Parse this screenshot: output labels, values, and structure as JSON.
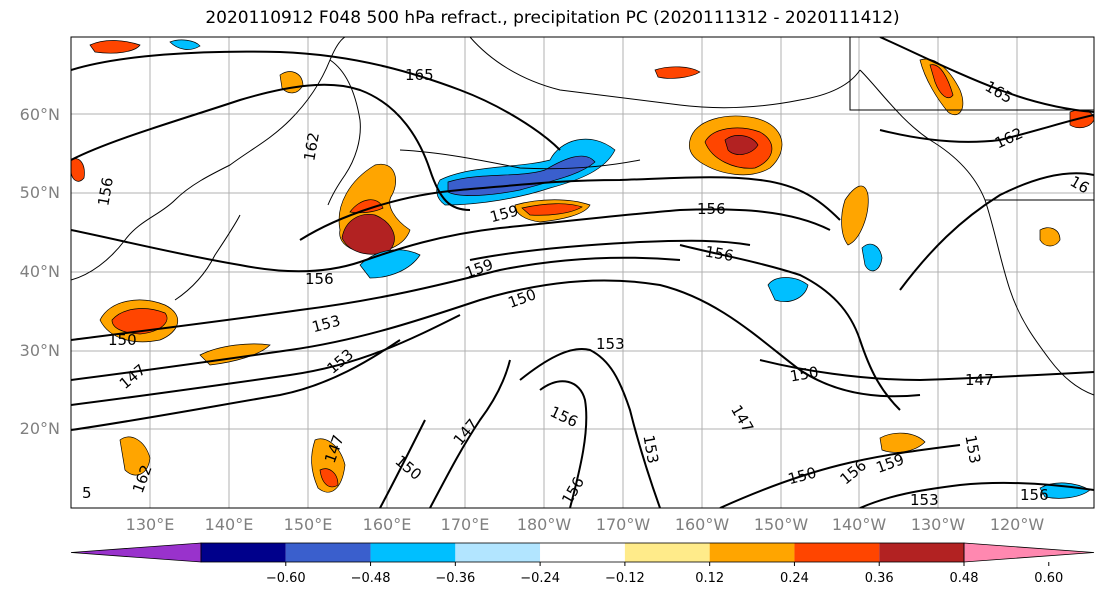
{
  "title": "2020110912 F048 500 hPa refract., precipitation PC (2020111312 - 2020111412)",
  "lat_labels": [
    "60°N",
    "50°N",
    "40°N",
    "30°N",
    "20°N"
  ],
  "lon_labels": [
    "130°E",
    "140°E",
    "150°E",
    "160°E",
    "170°E",
    "180°W",
    "170°W",
    "160°W",
    "150°W",
    "140°W",
    "130°W",
    "120°W"
  ],
  "contour_labels": [
    "165",
    "162",
    "156",
    "159",
    "156",
    "156",
    "159",
    "156",
    "150",
    "153",
    "150",
    "153",
    "153",
    "147",
    "150",
    "147",
    "147",
    "156",
    "153",
    "150",
    "156",
    "159",
    "147",
    "153",
    "165",
    "162",
    "16",
    "147",
    "150",
    "156",
    "153",
    "156",
    "162",
    "5"
  ],
  "colorbar": {
    "tick_labels": [
      "−0.60",
      "−0.48",
      "−0.36",
      "−0.24",
      "−0.12",
      "0.12",
      "0.24",
      "0.36",
      "0.48",
      "0.60"
    ],
    "colors": [
      "#9932cc",
      "#00008b",
      "#3a5fcd",
      "#00bfff",
      "#b2e5ff",
      "#ffffff",
      "#ffeb8a",
      "#ffa500",
      "#ff4500",
      "#b22222",
      "#ff88b0"
    ]
  },
  "palette": {
    "border": "#000000",
    "grid": "#b0b0b0",
    "label_gray": "#808080"
  }
}
